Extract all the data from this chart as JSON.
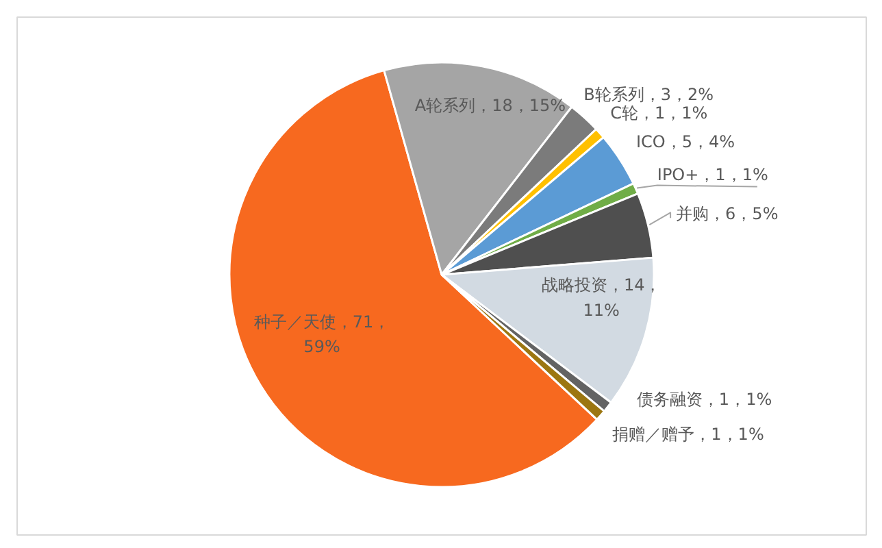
{
  "chart_data": {
    "type": "pie",
    "categories": [
      "种子／天使",
      "A轮系列",
      "B轮系列",
      "C轮",
      "ICO",
      "IPO+",
      "并购",
      "战略投资",
      "债务融资",
      "捐赠／赠予"
    ],
    "values": [
      71,
      18,
      3,
      1,
      5,
      1,
      6,
      14,
      1,
      1
    ],
    "colors": [
      "#f7691f",
      "#a5a5a5",
      "#7b7b7b",
      "#ffc000",
      "#5b9bd5",
      "#70ad47",
      "#4f4f4f",
      "#d2dae2",
      "#636363",
      "#9c7611"
    ],
    "value_labels": [
      "71，59%",
      "18，15%",
      "3，2%",
      "1，1%",
      "5，4%",
      "1，1%",
      "6，5%",
      "14，11%",
      "1，1%",
      "1，1%"
    ]
  }
}
